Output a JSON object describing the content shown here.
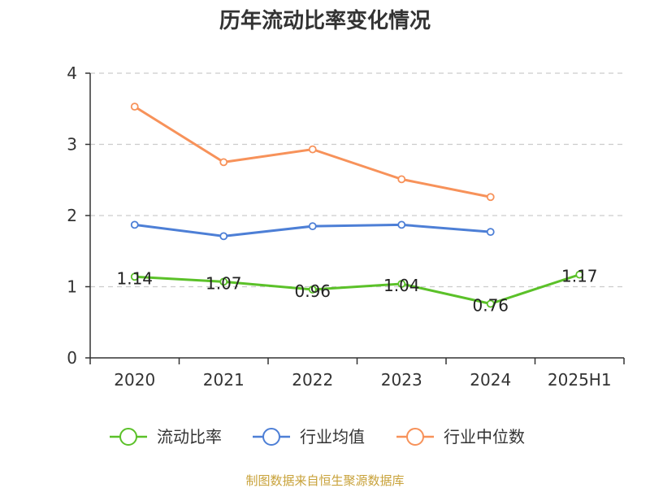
{
  "colors": {
    "series": [
      "#5bc129",
      "#4d7fd6",
      "#f7925a"
    ],
    "grid": "#cccccc",
    "axis": "#333333",
    "source": "#c8a23a"
  },
  "chart_data": {
    "type": "line",
    "title": "历年流动比率变化情况",
    "categories": [
      "2020",
      "2021",
      "2022",
      "2023",
      "2024",
      "2025H1"
    ],
    "ylim": [
      0,
      4
    ],
    "yticks": [
      "0",
      "1",
      "2",
      "3",
      "4"
    ],
    "grid": true,
    "legend_position": "bottom",
    "series": [
      {
        "name": "流动比率",
        "values": [
          1.14,
          1.07,
          0.96,
          1.04,
          0.76,
          1.17
        ],
        "labels": [
          "1.14",
          "1.07",
          "0.96",
          "1.04",
          "0.76",
          "1.17"
        ]
      },
      {
        "name": "行业均值",
        "values": [
          1.87,
          1.71,
          1.85,
          1.87,
          1.77,
          null
        ]
      },
      {
        "name": "行业中位数",
        "values": [
          3.53,
          2.75,
          2.93,
          2.51,
          2.26,
          null
        ]
      }
    ]
  },
  "source": "制图数据来自恒生聚源数据库"
}
